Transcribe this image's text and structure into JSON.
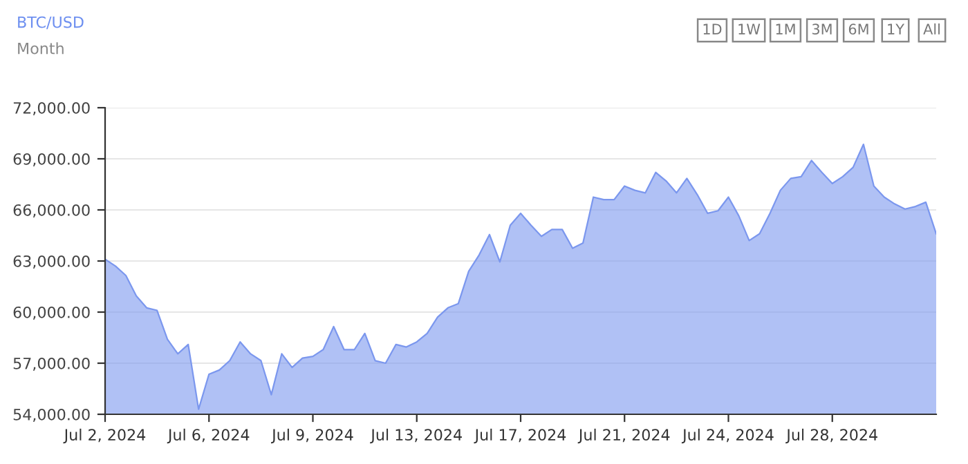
{
  "chart_data": {
    "type": "area",
    "title": "BTC/USD",
    "subtitle": "Month",
    "annotations": [
      "1D",
      "1W",
      "1M",
      "3M",
      "6M",
      "1Y",
      "All"
    ],
    "categories": [
      "Jul 2, 2024",
      null,
      null,
      null,
      null,
      null,
      null,
      null,
      null,
      null,
      "Jul 6, 2024",
      null,
      null,
      null,
      null,
      null,
      null,
      null,
      null,
      null,
      "Jul 9, 2024",
      null,
      null,
      null,
      null,
      null,
      null,
      null,
      null,
      null,
      "Jul 13, 2024",
      null,
      null,
      null,
      null,
      null,
      null,
      null,
      null,
      null,
      "Jul 17, 2024",
      null,
      null,
      null,
      null,
      null,
      null,
      null,
      null,
      null,
      "Jul 21, 2024",
      null,
      null,
      null,
      null,
      null,
      null,
      null,
      null,
      null,
      "Jul 24, 2024",
      null,
      null,
      null,
      null,
      null,
      null,
      null,
      null,
      null,
      "Jul 28, 2024",
      null,
      null,
      null,
      null,
      null,
      null,
      null,
      null,
      null,
      null
    ],
    "series": [
      {
        "color": "#7b97ee",
        "values": [
          63100,
          62700,
          62150,
          60950,
          60250,
          60100,
          58400,
          57550,
          58100,
          54300,
          56350,
          56600,
          57150,
          58250,
          57550,
          57150,
          55150,
          57550,
          56750,
          57300,
          57400,
          57800,
          59150,
          57800,
          57800,
          58750,
          57150,
          57000,
          58100,
          57950,
          58250,
          58750,
          59700,
          60250,
          60500,
          62400,
          63350,
          64550,
          62950,
          65100,
          65800,
          65100,
          64450,
          64850,
          64850,
          63750,
          64050,
          66750,
          66600,
          66600,
          67400,
          67150,
          67000,
          68200,
          67700,
          67000,
          67850,
          66900,
          65800,
          65950,
          66750,
          65650,
          64200,
          64600,
          65800,
          67150,
          67850,
          67950,
          68900,
          68200,
          67550,
          67950,
          68500,
          69850,
          67400,
          66750,
          66350,
          66050,
          66200,
          66450,
          64600
        ]
      }
    ],
    "ylim": [
      54000,
      72000
    ],
    "yticks": [
      {
        "value": 54000,
        "label": "54,000.00"
      },
      {
        "value": 57000,
        "label": "57,000.00"
      },
      {
        "value": 60000,
        "label": "60,000.00"
      },
      {
        "value": 63000,
        "label": "63,000.00"
      },
      {
        "value": 66000,
        "label": "66,000.00"
      },
      {
        "value": 69000,
        "label": "69,000.00"
      },
      {
        "value": 72000,
        "label": "72,000.00"
      }
    ],
    "grid": "y",
    "legend": false,
    "marker": "none",
    "line_style": "solid"
  }
}
